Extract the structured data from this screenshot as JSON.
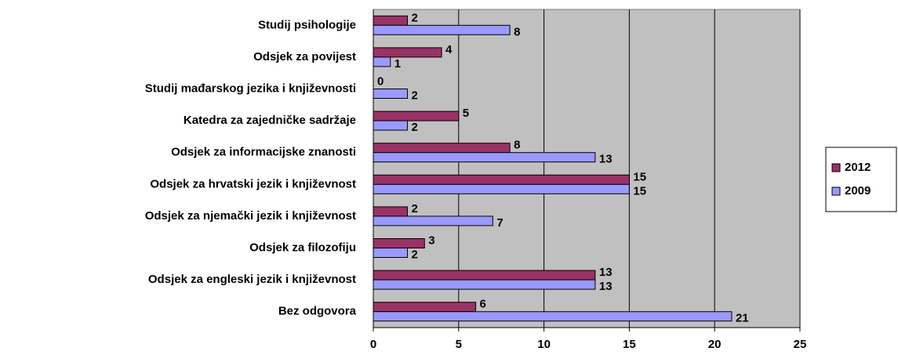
{
  "chart_data": {
    "type": "barh",
    "categories": [
      "Studij psihologije",
      "Odsjek za povijest",
      "Studij mađarskog jezika i književnosti",
      "Katedra za zajedničke sadržaje",
      "Odsjek za informacijske znanosti",
      "Odsjek za hrvatski jezik i književnost",
      "Odsjek za njemački jezik i književnost",
      "Odsjek za filozofiju",
      "Odsjek za engleski jezik i književnost",
      "Bez odgovora"
    ],
    "series": [
      {
        "name": "2012",
        "color": "#993366",
        "values": [
          2,
          4,
          0,
          5,
          8,
          15,
          2,
          3,
          13,
          6
        ]
      },
      {
        "name": "2009",
        "color": "#9999ff",
        "values": [
          8,
          1,
          2,
          2,
          13,
          15,
          7,
          2,
          13,
          21
        ]
      }
    ],
    "xlim": [
      0,
      25
    ],
    "xticks": [
      0,
      5,
      10,
      15,
      20,
      25
    ],
    "grid": true,
    "legend": "right"
  }
}
